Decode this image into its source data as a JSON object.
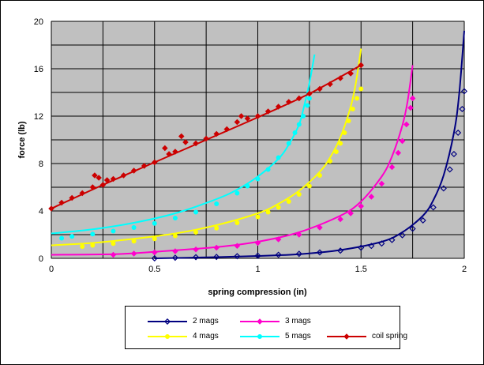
{
  "chart_data": {
    "type": "scatter",
    "title": "",
    "xlabel": "spring compression (in)",
    "ylabel": "force (lb)",
    "xlim": [
      0,
      2
    ],
    "ylim": [
      0,
      20
    ],
    "x_ticks": [
      "0",
      "0.5",
      "1",
      "1.5",
      "2"
    ],
    "y_ticks": [
      "0",
      "4",
      "8",
      "12",
      "16",
      "20"
    ],
    "x_tick_values": [
      0,
      0.5,
      1,
      1.5,
      2
    ],
    "y_tick_values": [
      0,
      4,
      8,
      12,
      16,
      20
    ],
    "x_gridlines": [
      0,
      0.25,
      0.5,
      0.75,
      1,
      1.25,
      1.5,
      1.75,
      2
    ],
    "y_gridlines": [
      0,
      2,
      4,
      6,
      8,
      10,
      12,
      14,
      16,
      18,
      20
    ],
    "grid": true,
    "plot_background": "#c0c0c0",
    "legend_position": "bottom",
    "series": [
      {
        "name": "2 mags",
        "color": "#000080",
        "marker": "diamond-open",
        "fit_curve": [
          [
            0.5,
            0
          ],
          [
            0.8,
            0.1
          ],
          [
            1.0,
            0.2
          ],
          [
            1.2,
            0.35
          ],
          [
            1.4,
            0.7
          ],
          [
            1.6,
            1.4
          ],
          [
            1.7,
            2.2
          ],
          [
            1.8,
            3.6
          ],
          [
            1.85,
            4.9
          ],
          [
            1.9,
            7.0
          ],
          [
            1.95,
            10.6
          ],
          [
            1.975,
            13.8
          ],
          [
            2.0,
            19.2
          ]
        ],
        "points": [
          [
            0.5,
            0
          ],
          [
            0.6,
            0.05
          ],
          [
            0.7,
            0.1
          ],
          [
            0.8,
            0.12
          ],
          [
            0.9,
            0.18
          ],
          [
            1.0,
            0.22
          ],
          [
            1.1,
            0.3
          ],
          [
            1.2,
            0.38
          ],
          [
            1.3,
            0.5
          ],
          [
            1.4,
            0.65
          ],
          [
            1.5,
            0.9
          ],
          [
            1.55,
            1.05
          ],
          [
            1.6,
            1.25
          ],
          [
            1.65,
            1.55
          ],
          [
            1.7,
            1.95
          ],
          [
            1.75,
            2.5
          ],
          [
            1.8,
            3.2
          ],
          [
            1.85,
            4.3
          ],
          [
            1.9,
            5.9
          ],
          [
            1.93,
            7.5
          ],
          [
            1.95,
            8.8
          ],
          [
            1.97,
            10.6
          ],
          [
            1.99,
            12.6
          ],
          [
            2.0,
            14.1
          ]
        ]
      },
      {
        "name": "3 mags",
        "color": "#ff00cc",
        "marker": "diamond-filled",
        "fit_curve": [
          [
            0,
            0.3
          ],
          [
            0.3,
            0.35
          ],
          [
            0.5,
            0.55
          ],
          [
            0.8,
            0.95
          ],
          [
            1.0,
            1.4
          ],
          [
            1.2,
            2.2
          ],
          [
            1.4,
            3.6
          ],
          [
            1.5,
            4.8
          ],
          [
            1.6,
            6.9
          ],
          [
            1.65,
            8.6
          ],
          [
            1.7,
            11.2
          ],
          [
            1.725,
            13.2
          ],
          [
            1.75,
            16.3
          ]
        ],
        "points": [
          [
            0.3,
            0.3
          ],
          [
            0.4,
            0.4
          ],
          [
            0.5,
            0.5
          ],
          [
            0.6,
            0.6
          ],
          [
            0.7,
            0.75
          ],
          [
            0.8,
            0.9
          ],
          [
            0.9,
            1.05
          ],
          [
            1.0,
            1.3
          ],
          [
            1.1,
            1.6
          ],
          [
            1.2,
            2.0
          ],
          [
            1.3,
            2.6
          ],
          [
            1.4,
            3.3
          ],
          [
            1.45,
            3.8
          ],
          [
            1.5,
            4.4
          ],
          [
            1.55,
            5.2
          ],
          [
            1.6,
            6.3
          ],
          [
            1.65,
            7.7
          ],
          [
            1.68,
            8.9
          ],
          [
            1.7,
            9.9
          ],
          [
            1.72,
            11.3
          ],
          [
            1.74,
            12.7
          ],
          [
            1.75,
            13.5
          ]
        ]
      },
      {
        "name": "4 mags",
        "color": "#ffff00",
        "marker": "circle-filled",
        "fit_curve": [
          [
            0,
            1.1
          ],
          [
            0.2,
            1.3
          ],
          [
            0.4,
            1.65
          ],
          [
            0.6,
            2.1
          ],
          [
            0.8,
            2.8
          ],
          [
            1.0,
            3.8
          ],
          [
            1.1,
            4.6
          ],
          [
            1.2,
            5.7
          ],
          [
            1.3,
            7.3
          ],
          [
            1.35,
            8.5
          ],
          [
            1.4,
            10.2
          ],
          [
            1.45,
            12.8
          ],
          [
            1.475,
            14.8
          ],
          [
            1.5,
            17.7
          ]
        ],
        "points": [
          [
            0.15,
            1.0
          ],
          [
            0.2,
            1.1
          ],
          [
            0.3,
            1.25
          ],
          [
            0.4,
            1.45
          ],
          [
            0.5,
            1.65
          ],
          [
            0.6,
            1.9
          ],
          [
            0.7,
            2.2
          ],
          [
            0.8,
            2.55
          ],
          [
            0.9,
            3.0
          ],
          [
            1.0,
            3.5
          ],
          [
            1.05,
            3.9
          ],
          [
            1.1,
            4.3
          ],
          [
            1.15,
            4.8
          ],
          [
            1.2,
            5.4
          ],
          [
            1.25,
            6.1
          ],
          [
            1.3,
            7.0
          ],
          [
            1.35,
            8.2
          ],
          [
            1.38,
            9.0
          ],
          [
            1.4,
            9.7
          ],
          [
            1.42,
            10.6
          ],
          [
            1.44,
            11.6
          ],
          [
            1.46,
            12.6
          ],
          [
            1.48,
            13.5
          ],
          [
            1.5,
            14.3
          ]
        ]
      },
      {
        "name": "5 mags",
        "color": "#00ffff",
        "marker": "circle-filled",
        "fit_curve": [
          [
            0,
            2.1
          ],
          [
            0.2,
            2.45
          ],
          [
            0.4,
            3.0
          ],
          [
            0.6,
            3.8
          ],
          [
            0.8,
            5.0
          ],
          [
            0.9,
            5.8
          ],
          [
            1.0,
            6.9
          ],
          [
            1.1,
            8.4
          ],
          [
            1.15,
            9.6
          ],
          [
            1.2,
            11.3
          ],
          [
            1.225,
            12.9
          ],
          [
            1.25,
            14.8
          ],
          [
            1.275,
            17.2
          ]
        ],
        "points": [
          [
            0.05,
            1.7
          ],
          [
            0.1,
            1.85
          ],
          [
            0.2,
            2.05
          ],
          [
            0.3,
            2.3
          ],
          [
            0.4,
            2.6
          ],
          [
            0.5,
            2.95
          ],
          [
            0.6,
            3.4
          ],
          [
            0.7,
            3.9
          ],
          [
            0.8,
            4.6
          ],
          [
            0.9,
            5.5
          ],
          [
            0.95,
            6.1
          ],
          [
            1.0,
            6.7
          ],
          [
            1.05,
            7.5
          ],
          [
            1.1,
            8.5
          ],
          [
            1.15,
            9.7
          ],
          [
            1.18,
            10.6
          ],
          [
            1.2,
            11.3
          ],
          [
            1.22,
            12.0
          ],
          [
            1.24,
            12.9
          ],
          [
            1.25,
            13.5
          ]
        ]
      },
      {
        "name": "coil spring",
        "color": "#cc0000",
        "marker": "diamond-filled",
        "fit_curve": [
          [
            0,
            4.2
          ],
          [
            0.25,
            6.2
          ],
          [
            0.5,
            8.1
          ],
          [
            0.75,
            10.0
          ],
          [
            1.0,
            11.9
          ],
          [
            1.25,
            13.9
          ],
          [
            1.5,
            16.3
          ]
        ],
        "points": [
          [
            0,
            4.2
          ],
          [
            0.05,
            4.7
          ],
          [
            0.1,
            5.1
          ],
          [
            0.15,
            5.5
          ],
          [
            0.2,
            6.0
          ],
          [
            0.21,
            7.0
          ],
          [
            0.23,
            6.8
          ],
          [
            0.25,
            6.2
          ],
          [
            0.27,
            6.6
          ],
          [
            0.3,
            6.7
          ],
          [
            0.35,
            7.0
          ],
          [
            0.4,
            7.4
          ],
          [
            0.45,
            7.8
          ],
          [
            0.5,
            8.1
          ],
          [
            0.55,
            9.3
          ],
          [
            0.57,
            8.8
          ],
          [
            0.6,
            9.0
          ],
          [
            0.63,
            10.3
          ],
          [
            0.65,
            9.8
          ],
          [
            0.7,
            9.7
          ],
          [
            0.75,
            10.1
          ],
          [
            0.8,
            10.5
          ],
          [
            0.85,
            10.9
          ],
          [
            0.9,
            11.5
          ],
          [
            0.92,
            12.0
          ],
          [
            0.95,
            11.8
          ],
          [
            1.0,
            12.0
          ],
          [
            1.05,
            12.4
          ],
          [
            1.1,
            12.8
          ],
          [
            1.15,
            13.2
          ],
          [
            1.2,
            13.5
          ],
          [
            1.25,
            13.9
          ],
          [
            1.3,
            14.3
          ],
          [
            1.35,
            14.7
          ],
          [
            1.4,
            15.2
          ],
          [
            1.45,
            15.6
          ],
          [
            1.5,
            16.3
          ]
        ]
      }
    ]
  }
}
